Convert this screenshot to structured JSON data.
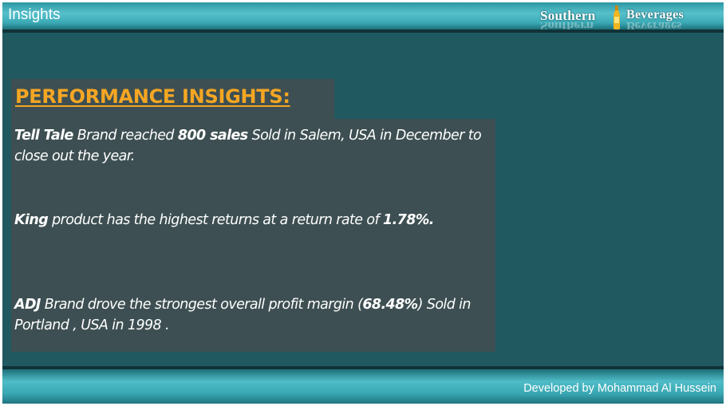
{
  "header": {
    "title": "Insights",
    "logo": {
      "word_left": "Southern",
      "word_right": "Beverages"
    }
  },
  "insights": {
    "heading": "PERFORMANCE INSIGHTS:",
    "items": [
      {
        "strong_1": "Tell Tale",
        "text_1": " Brand reached ",
        "strong_2": "800 sales",
        "text_2": " Sold in Salem, USA in December to close out the year."
      },
      {
        "strong_1": "King",
        "text_1": " product  has the highest returns  at a return rate of ",
        "strong_2": "1.78%.",
        "text_2": ""
      },
      {
        "strong_1": "ADJ",
        "text_1": " Brand drove the strongest overall profit margin (",
        "strong_2": "68.48%",
        "text_2": ") Sold in Portland , USA in 1998 ."
      }
    ]
  },
  "footer": {
    "credit": "Developed by Mohammad Al Hussein"
  },
  "colors": {
    "background": "#215961",
    "panel": "#3d4f52",
    "heading_accent": "#f5a623",
    "header_band": "#56c0cb"
  }
}
